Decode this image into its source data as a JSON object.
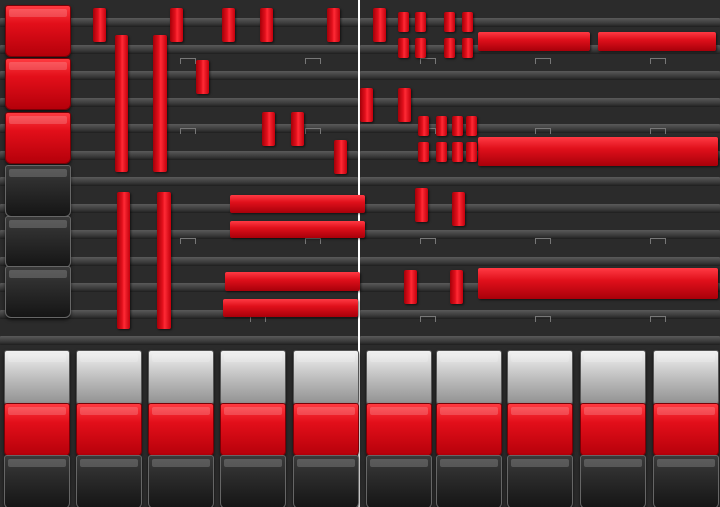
{
  "colors": {
    "panel": "#2b2b2b",
    "holder_red": "#e3101c",
    "bin_red": "#e30f1a",
    "bin_black": "#1a1a1a",
    "bin_clear": "#d0d0d0"
  }
}
